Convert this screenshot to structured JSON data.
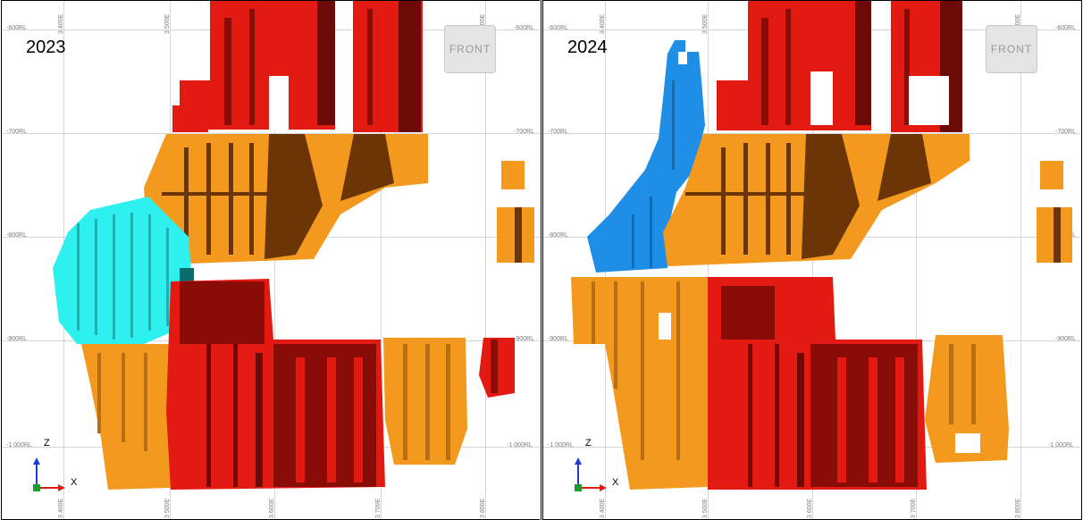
{
  "panels": [
    {
      "year": "2023",
      "front_label": "FRONT",
      "rl_labels": [
        "-600RL",
        "-700RL",
        "-800RL",
        "-900RL",
        "-1 000RL"
      ],
      "east_labels": [
        "3 400E",
        "3 500E",
        "3 600E",
        "3 700E",
        "3 800E"
      ],
      "axis": {
        "z": "Z",
        "x": "X",
        "y": "Y"
      }
    },
    {
      "year": "2024",
      "front_label": "FRONT",
      "rl_labels": [
        "-600RL",
        "-700RL",
        "-800RL",
        "-900RL",
        "-1 000RL"
      ],
      "east_labels": [
        "3 400E",
        "3 500E",
        "3 600E",
        "3 700E",
        "3 800E"
      ],
      "axis": {
        "z": "Z",
        "x": "X",
        "y": "Y"
      }
    }
  ],
  "colors": {
    "red": "#e21a12",
    "dark_red": "#6b0a06",
    "orange": "#f39a1e",
    "brown": "#6b3506",
    "cyan": "#2ef0ef",
    "blue": "#1f8ee6",
    "grid": "#d6d6d6",
    "axis_z": "#1d3ccf",
    "axis_x": "#e21a12",
    "axis_y": "#1e9a2d"
  }
}
